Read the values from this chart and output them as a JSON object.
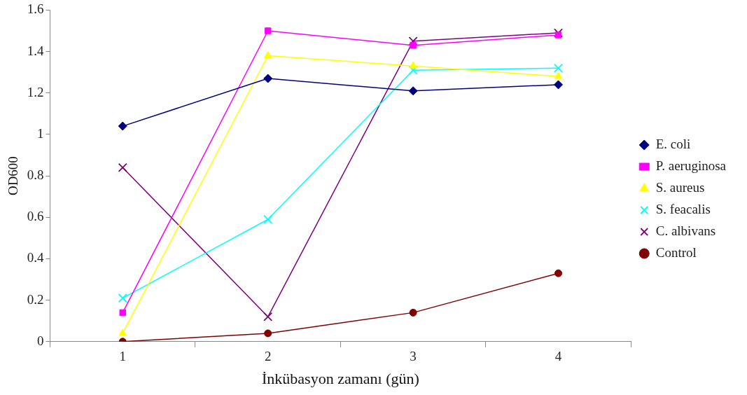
{
  "chart_data": {
    "type": "line",
    "xlabel": "İnkübasyon zamanı (gün)",
    "ylabel": "OD600",
    "categories": [
      "1",
      "2",
      "3",
      "4"
    ],
    "ylim": [
      0,
      1.6
    ],
    "yticks": [
      0,
      0.2,
      0.4,
      0.6,
      0.8,
      1,
      1.2,
      1.4,
      1.6
    ],
    "grid": false,
    "legend": "right",
    "series": [
      {
        "name": "E. coli",
        "color": "#000080",
        "marker": "diamond",
        "values": [
          1.04,
          1.27,
          1.21,
          1.24
        ]
      },
      {
        "name": "P. aeruginosa",
        "color": "#ff00ff",
        "marker": "square",
        "values": [
          0.14,
          1.5,
          1.43,
          1.48
        ]
      },
      {
        "name": "S. aureus",
        "color": "#ffff00",
        "marker": "triangle",
        "values": [
          0.04,
          1.38,
          1.33,
          1.28
        ]
      },
      {
        "name": "S. feacalis",
        "color": "#00ffff",
        "marker": "cross",
        "values": [
          0.21,
          0.59,
          1.31,
          1.32
        ]
      },
      {
        "name": "C. albivans",
        "color": "#800080",
        "marker": "cross",
        "values": [
          0.84,
          0.12,
          1.45,
          1.49
        ]
      },
      {
        "name": "Control",
        "color": "#800000",
        "marker": "circle",
        "values": [
          0.0,
          0.04,
          0.14,
          0.33
        ]
      }
    ]
  }
}
